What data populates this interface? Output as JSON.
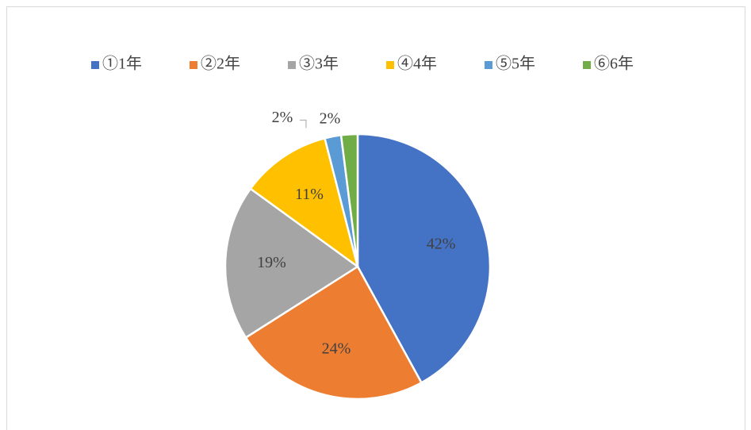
{
  "chart_data": {
    "type": "pie",
    "categories": [
      "①1年",
      "②2年",
      "③3年",
      "④4年",
      "⑤5年",
      "⑥6年"
    ],
    "values": [
      42,
      24,
      19,
      11,
      2,
      2
    ],
    "value_labels": [
      "42%",
      "24%",
      "19%",
      "11%",
      "2%",
      "2%"
    ],
    "colors": [
      "#4472c4",
      "#ed7d31",
      "#a5a5a5",
      "#ffc000",
      "#5b9bd5",
      "#70ad47"
    ],
    "legend": "top"
  }
}
